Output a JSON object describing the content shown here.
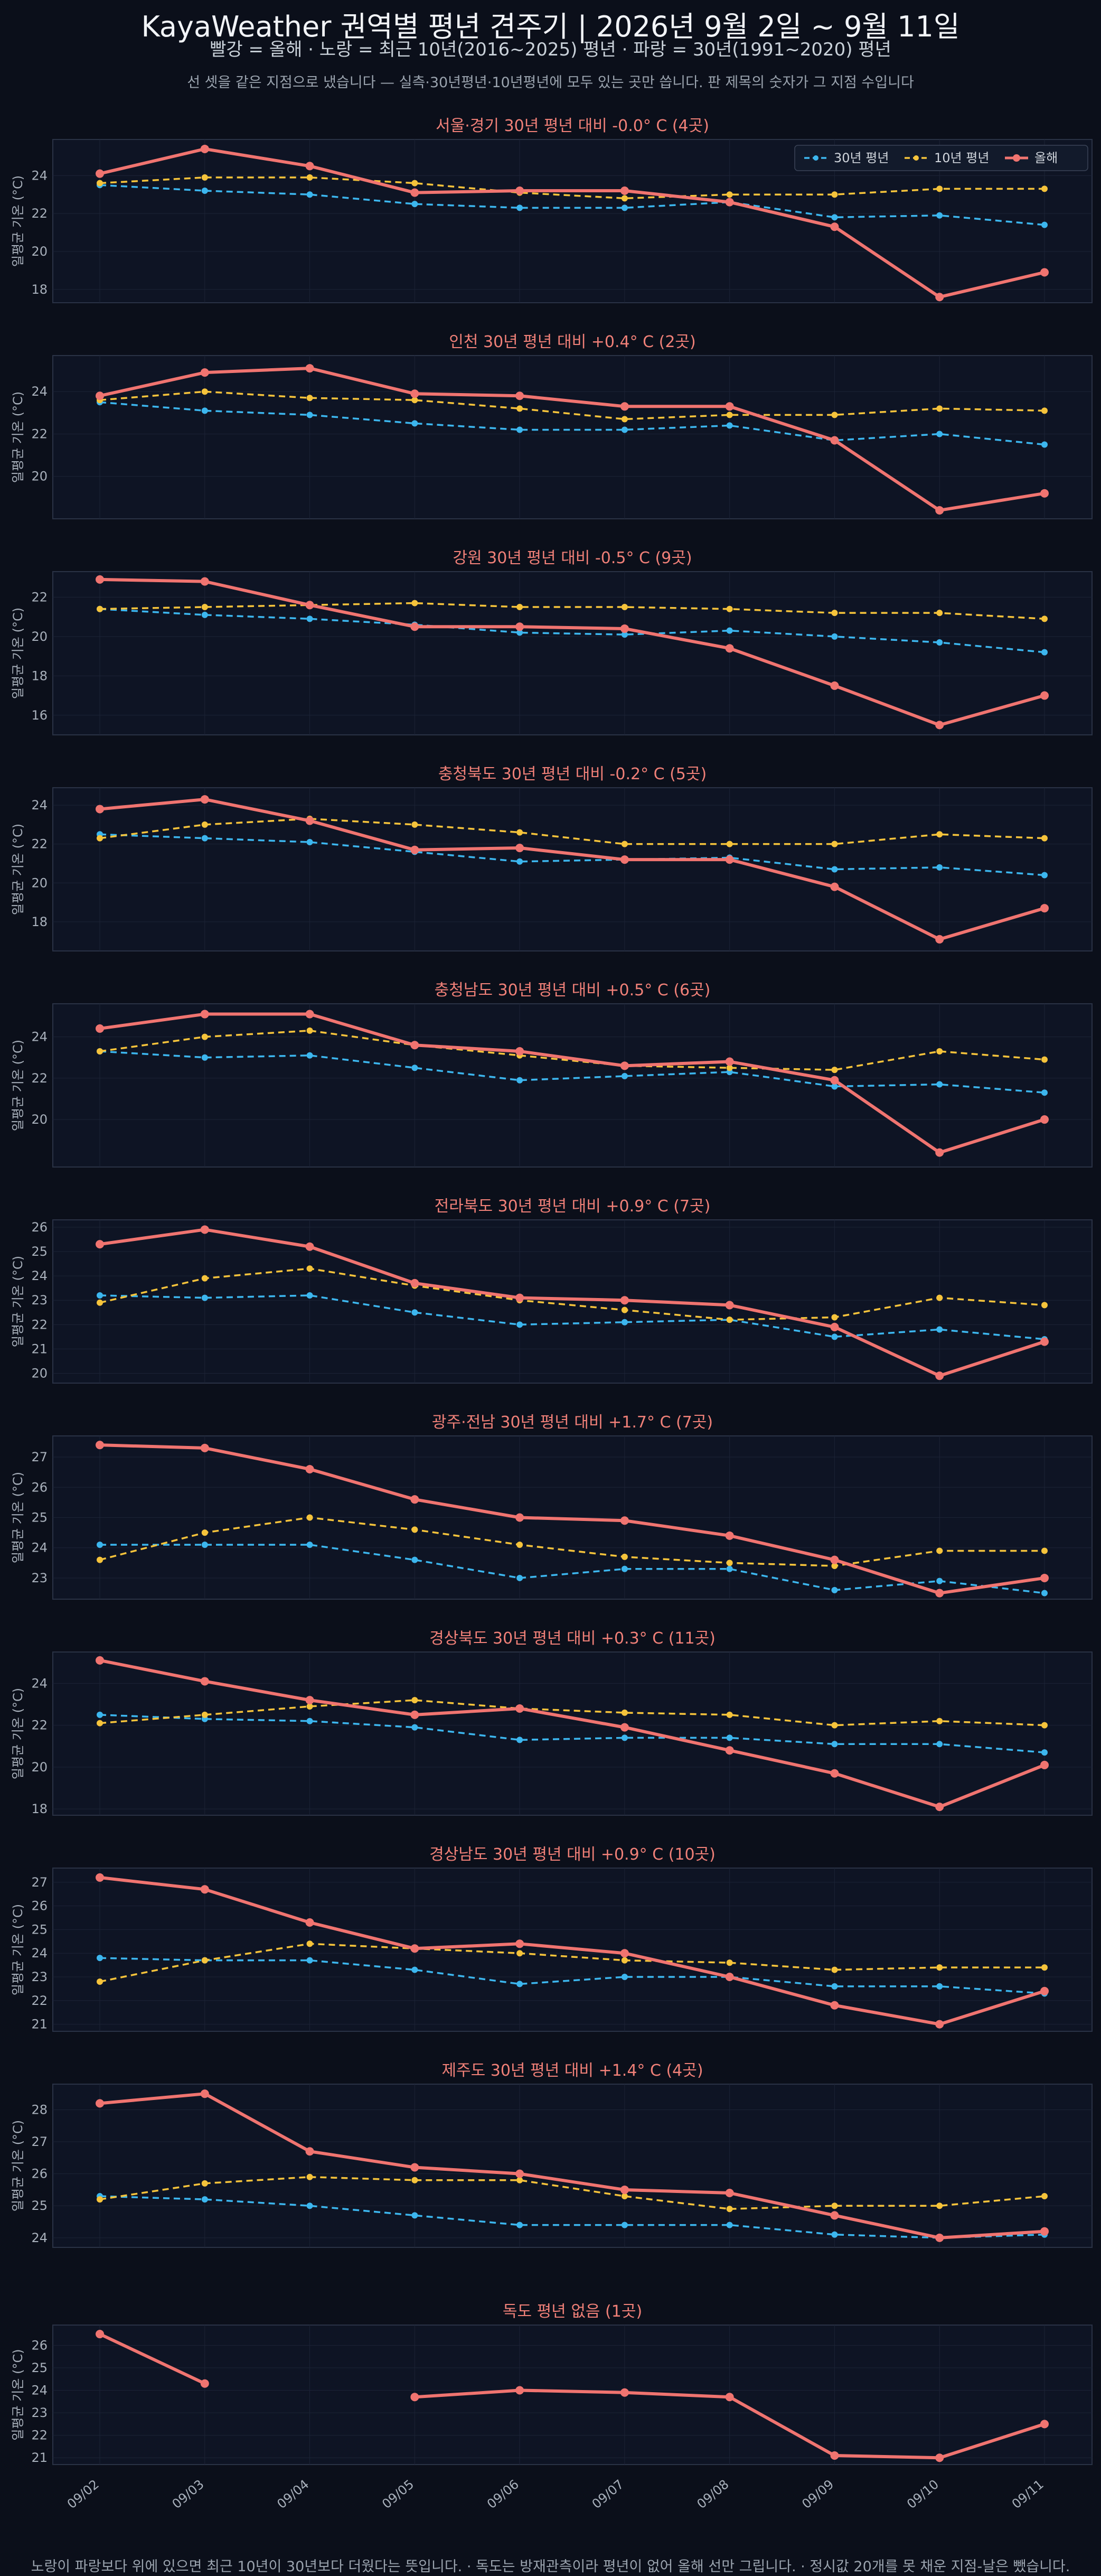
{
  "header": {
    "title": "KayaWeather 권역별 평년 견주기 | 2026년 9월 2일 ~ 9월 11일",
    "subtitle": "빨강 = 올해   ·   노랑 = 최근 10년(2016~2025) 평년   ·   파랑 = 30년(1991~2020) 평년",
    "note": "선 셋을 같은 지점으로 냈습니다 — 실측·30년평년·10년평년에 모두 있는 곳만 씁니다. 판 제목의 숫자가 그 지점 수입니다"
  },
  "footer": "노랑이 파랑보다 위에 있으면 최근 10년이 30년보다 더웠다는 뜻입니다.   ·   독도는 방재관측이라 평년이 없어 올해 선만 그립니다.   ·   정시값 20개를 못 채운 지점-날은 뺐습니다.",
  "colors": {
    "this_year": "#f07470",
    "ten_year": "#f5c33b",
    "thirty_year": "#3cb6ee",
    "panel_bg": "#0e1424",
    "grid": "#1c2336"
  },
  "chart_data": {
    "type": "line",
    "x": [
      "09/02",
      "09/03",
      "09/04",
      "09/05",
      "09/06",
      "09/07",
      "09/08",
      "09/09",
      "09/10",
      "09/11"
    ],
    "ylabel": "일평균 기온 (°C)",
    "legend": {
      "placement": "top-right",
      "entries": [
        "30년 평년",
        "10년 평년",
        "올해"
      ]
    },
    "grid": true,
    "panels": [
      {
        "title": "서울·경기   30년 평년 대비 -0.0° C  (4곳)",
        "ylim": [
          17.3,
          25.9
        ],
        "yticks": [
          18,
          20,
          22,
          24
        ],
        "series": [
          {
            "name": "30년 평년",
            "values": [
              23.5,
              23.2,
              23.0,
              22.5,
              22.3,
              22.3,
              22.6,
              21.8,
              21.9,
              21.4
            ]
          },
          {
            "name": "10년 평년",
            "values": [
              23.6,
              23.9,
              23.9,
              23.6,
              23.1,
              22.8,
              23.0,
              23.0,
              23.3,
              23.3
            ]
          },
          {
            "name": "올해",
            "values": [
              24.1,
              25.4,
              24.5,
              23.1,
              23.2,
              23.2,
              22.6,
              21.3,
              17.6,
              18.9
            ]
          }
        ]
      },
      {
        "title": "인천   30년 평년 대비 +0.4° C  (2곳)",
        "ylim": [
          18.0,
          25.7
        ],
        "yticks": [
          20,
          22,
          24
        ],
        "series": [
          {
            "name": "30년 평년",
            "values": [
              23.5,
              23.1,
              22.9,
              22.5,
              22.2,
              22.2,
              22.4,
              21.7,
              22.0,
              21.5
            ]
          },
          {
            "name": "10년 평년",
            "values": [
              23.6,
              24.0,
              23.7,
              23.6,
              23.2,
              22.7,
              22.9,
              22.9,
              23.2,
              23.1
            ]
          },
          {
            "name": "올해",
            "values": [
              23.8,
              24.9,
              25.1,
              23.9,
              23.8,
              23.3,
              23.3,
              21.7,
              18.4,
              19.2
            ]
          }
        ]
      },
      {
        "title": "강원   30년 평년 대비 -0.5° C  (9곳)",
        "ylim": [
          15.0,
          23.3
        ],
        "yticks": [
          16,
          18,
          20,
          22
        ],
        "series": [
          {
            "name": "30년 평년",
            "values": [
              21.4,
              21.1,
              20.9,
              20.6,
              20.2,
              20.1,
              20.3,
              20.0,
              19.7,
              19.2
            ]
          },
          {
            "name": "10년 평년",
            "values": [
              21.4,
              21.5,
              21.6,
              21.7,
              21.5,
              21.5,
              21.4,
              21.2,
              21.2,
              20.9
            ]
          },
          {
            "name": "올해",
            "values": [
              22.9,
              22.8,
              21.6,
              20.5,
              20.5,
              20.4,
              19.4,
              17.5,
              15.5,
              17.0
            ]
          }
        ]
      },
      {
        "title": "충청북도   30년 평년 대비 -0.2° C  (5곳)",
        "ylim": [
          16.5,
          24.9
        ],
        "yticks": [
          18,
          20,
          22,
          24
        ],
        "series": [
          {
            "name": "30년 평년",
            "values": [
              22.5,
              22.3,
              22.1,
              21.6,
              21.1,
              21.2,
              21.3,
              20.7,
              20.8,
              20.4
            ]
          },
          {
            "name": "10년 평년",
            "values": [
              22.3,
              23.0,
              23.3,
              23.0,
              22.6,
              22.0,
              22.0,
              22.0,
              22.5,
              22.3
            ]
          },
          {
            "name": "올해",
            "values": [
              23.8,
              24.3,
              23.2,
              21.7,
              21.8,
              21.2,
              21.2,
              19.8,
              17.1,
              18.7
            ]
          }
        ]
      },
      {
        "title": "충청남도   30년 평년 대비 +0.5° C  (6곳)",
        "ylim": [
          17.7,
          25.6
        ],
        "yticks": [
          20,
          22,
          24
        ],
        "series": [
          {
            "name": "30년 평년",
            "values": [
              23.3,
              23.0,
              23.1,
              22.5,
              21.9,
              22.1,
              22.3,
              21.6,
              21.7,
              21.3
            ]
          },
          {
            "name": "10년 평년",
            "values": [
              23.3,
              24.0,
              24.3,
              23.6,
              23.1,
              22.6,
              22.5,
              22.4,
              23.3,
              22.9
            ]
          },
          {
            "name": "올해",
            "values": [
              24.4,
              25.1,
              25.1,
              23.6,
              23.3,
              22.6,
              22.8,
              21.9,
              18.4,
              20.0
            ]
          }
        ]
      },
      {
        "title": "전라북도   30년 평년 대비 +0.9° C  (7곳)",
        "ylim": [
          19.6,
          26.3
        ],
        "yticks": [
          20,
          21,
          22,
          23,
          24,
          25,
          26
        ],
        "series": [
          {
            "name": "30년 평년",
            "values": [
              23.2,
              23.1,
              23.2,
              22.5,
              22.0,
              22.1,
              22.2,
              21.5,
              21.8,
              21.4
            ]
          },
          {
            "name": "10년 평년",
            "values": [
              22.9,
              23.9,
              24.3,
              23.6,
              23.0,
              22.6,
              22.2,
              22.3,
              23.1,
              22.8
            ]
          },
          {
            "name": "올해",
            "values": [
              25.3,
              25.9,
              25.2,
              23.7,
              23.1,
              23.0,
              22.8,
              21.9,
              19.9,
              21.3
            ]
          }
        ]
      },
      {
        "title": "광주·전남   30년 평년 대비 +1.7° C  (7곳)",
        "ylim": [
          22.3,
          27.7
        ],
        "yticks": [
          23,
          24,
          25,
          26,
          27
        ],
        "series": [
          {
            "name": "30년 평년",
            "values": [
              24.1,
              24.1,
              24.1,
              23.6,
              23.0,
              23.3,
              23.3,
              22.6,
              22.9,
              22.5
            ]
          },
          {
            "name": "10년 평년",
            "values": [
              23.6,
              24.5,
              25.0,
              24.6,
              24.1,
              23.7,
              23.5,
              23.4,
              23.9,
              23.9
            ]
          },
          {
            "name": "올해",
            "values": [
              27.4,
              27.3,
              26.6,
              25.6,
              25.0,
              24.9,
              24.4,
              23.6,
              22.5,
              23.0
            ]
          }
        ]
      },
      {
        "title": "경상북도   30년 평년 대비 +0.3° C  (11곳)",
        "ylim": [
          17.7,
          25.5
        ],
        "yticks": [
          18,
          20,
          22,
          24
        ],
        "series": [
          {
            "name": "30년 평년",
            "values": [
              22.5,
              22.3,
              22.2,
              21.9,
              21.3,
              21.4,
              21.4,
              21.1,
              21.1,
              20.7
            ]
          },
          {
            "name": "10년 평년",
            "values": [
              22.1,
              22.5,
              22.9,
              23.2,
              22.8,
              22.6,
              22.5,
              22.0,
              22.2,
              22.0
            ]
          },
          {
            "name": "올해",
            "values": [
              25.1,
              24.1,
              23.2,
              22.5,
              22.8,
              21.9,
              20.8,
              19.7,
              18.1,
              20.1
            ]
          }
        ]
      },
      {
        "title": "경상남도   30년 평년 대비 +0.9° C  (10곳)",
        "ylim": [
          20.7,
          27.6
        ],
        "yticks": [
          21,
          22,
          23,
          24,
          25,
          26,
          27
        ],
        "series": [
          {
            "name": "30년 평년",
            "values": [
              23.8,
              23.7,
              23.7,
              23.3,
              22.7,
              23.0,
              23.0,
              22.6,
              22.6,
              22.3
            ]
          },
          {
            "name": "10년 평년",
            "values": [
              22.8,
              23.7,
              24.4,
              24.2,
              24.0,
              23.7,
              23.6,
              23.3,
              23.4,
              23.4
            ]
          },
          {
            "name": "올해",
            "values": [
              27.2,
              26.7,
              25.3,
              24.2,
              24.4,
              24.0,
              23.0,
              21.8,
              21.0,
              22.4
            ]
          }
        ]
      },
      {
        "title": "제주도   30년 평년 대비 +1.4° C  (4곳)",
        "ylim": [
          23.7,
          28.8
        ],
        "yticks": [
          24,
          25,
          26,
          27,
          28
        ],
        "series": [
          {
            "name": "30년 평년",
            "values": [
              25.3,
              25.2,
              25.0,
              24.7,
              24.4,
              24.4,
              24.4,
              24.1,
              24.0,
              24.1
            ]
          },
          {
            "name": "10년 평년",
            "values": [
              25.2,
              25.7,
              25.9,
              25.8,
              25.8,
              25.3,
              24.9,
              25.0,
              25.0,
              25.3
            ]
          },
          {
            "name": "올해",
            "values": [
              28.2,
              28.5,
              26.7,
              26.2,
              26.0,
              25.5,
              25.4,
              24.7,
              24.0,
              24.2
            ]
          }
        ]
      },
      {
        "title": "독도   평년 없음  (1곳)",
        "ylim": [
          20.7,
          26.9
        ],
        "yticks": [
          21,
          22,
          23,
          24,
          25,
          26
        ],
        "series": [
          {
            "name": "올해",
            "values": [
              26.5,
              24.3,
              null,
              23.7,
              24.0,
              23.9,
              23.7,
              21.1,
              21.0,
              22.5
            ]
          }
        ]
      }
    ]
  }
}
